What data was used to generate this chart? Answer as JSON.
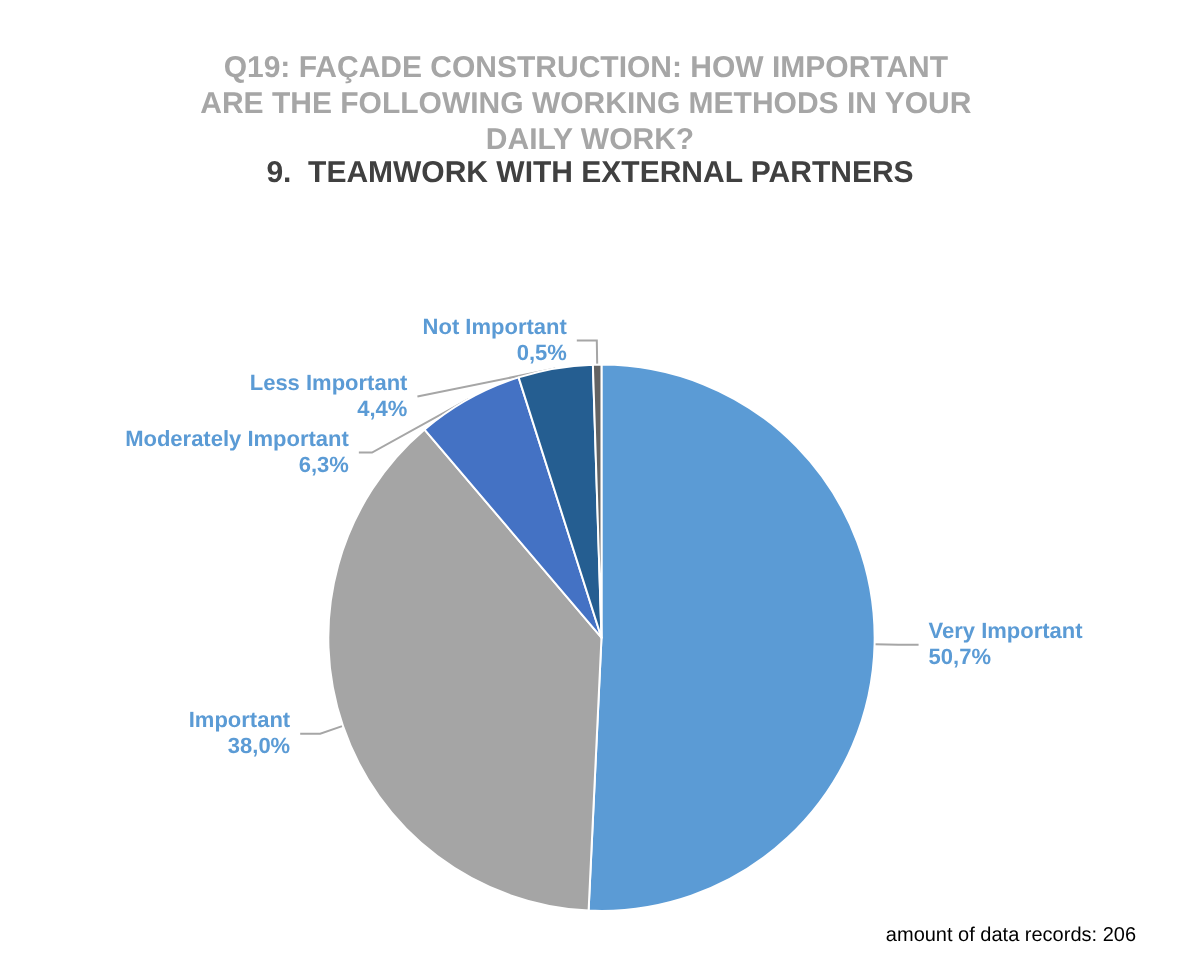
{
  "chart_data": {
    "type": "pie",
    "title": "Q19: FAÇADE CONSTRUCTION: HOW IMPORTANT ARE THE FOLLOWING WORKING METHODS IN YOUR DAILY WORK?",
    "subtitle": "9.  TEAMWORK WITH EXTERNAL PARTNERS",
    "categories": [
      "Very Important",
      "Important",
      "Moderately Important",
      "Less Important",
      "Not Important"
    ],
    "values": [
      50.7,
      38.0,
      6.3,
      4.4,
      0.5
    ],
    "colors": [
      "#5b9bd5",
      "#a5a5a5",
      "#4472c4",
      "#255e91",
      "#636363"
    ],
    "value_labels": [
      "50,7%",
      "38,0%",
      "6,3%",
      "4,4%",
      "0,5%"
    ],
    "annotations": [
      "amount of data records: 206"
    ],
    "legend": false
  }
}
